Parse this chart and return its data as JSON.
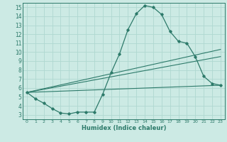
{
  "title": "",
  "xlabel": "Humidex (Indice chaleur)",
  "ylabel": "",
  "xlim": [
    -0.5,
    23.5
  ],
  "ylim": [
    2.5,
    15.5
  ],
  "xticks": [
    0,
    1,
    2,
    3,
    4,
    5,
    6,
    7,
    8,
    9,
    10,
    11,
    12,
    13,
    14,
    15,
    16,
    17,
    18,
    19,
    20,
    21,
    22,
    23
  ],
  "yticks": [
    3,
    4,
    5,
    6,
    7,
    8,
    9,
    10,
    11,
    12,
    13,
    14,
    15
  ],
  "bg_color": "#cceae4",
  "line_color": "#2d7a6a",
  "grid_color": "#afd8d0",
  "main_line_x": [
    0,
    1,
    2,
    3,
    4,
    5,
    6,
    7,
    8,
    9,
    10,
    11,
    12,
    13,
    14,
    15,
    16,
    17,
    18,
    19,
    20,
    21,
    22,
    23
  ],
  "main_line_y": [
    5.5,
    4.8,
    4.3,
    3.7,
    3.2,
    3.1,
    3.3,
    3.3,
    3.3,
    5.3,
    7.7,
    9.8,
    12.5,
    14.3,
    15.2,
    15.0,
    14.2,
    12.3,
    11.2,
    11.0,
    9.5,
    7.3,
    6.5,
    6.3
  ],
  "trend1_x": [
    0,
    23
  ],
  "trend1_y": [
    5.5,
    6.3
  ],
  "trend2_x": [
    0,
    23
  ],
  "trend2_y": [
    5.5,
    9.5
  ],
  "trend3_x": [
    0,
    23
  ],
  "trend3_y": [
    5.5,
    10.3
  ]
}
